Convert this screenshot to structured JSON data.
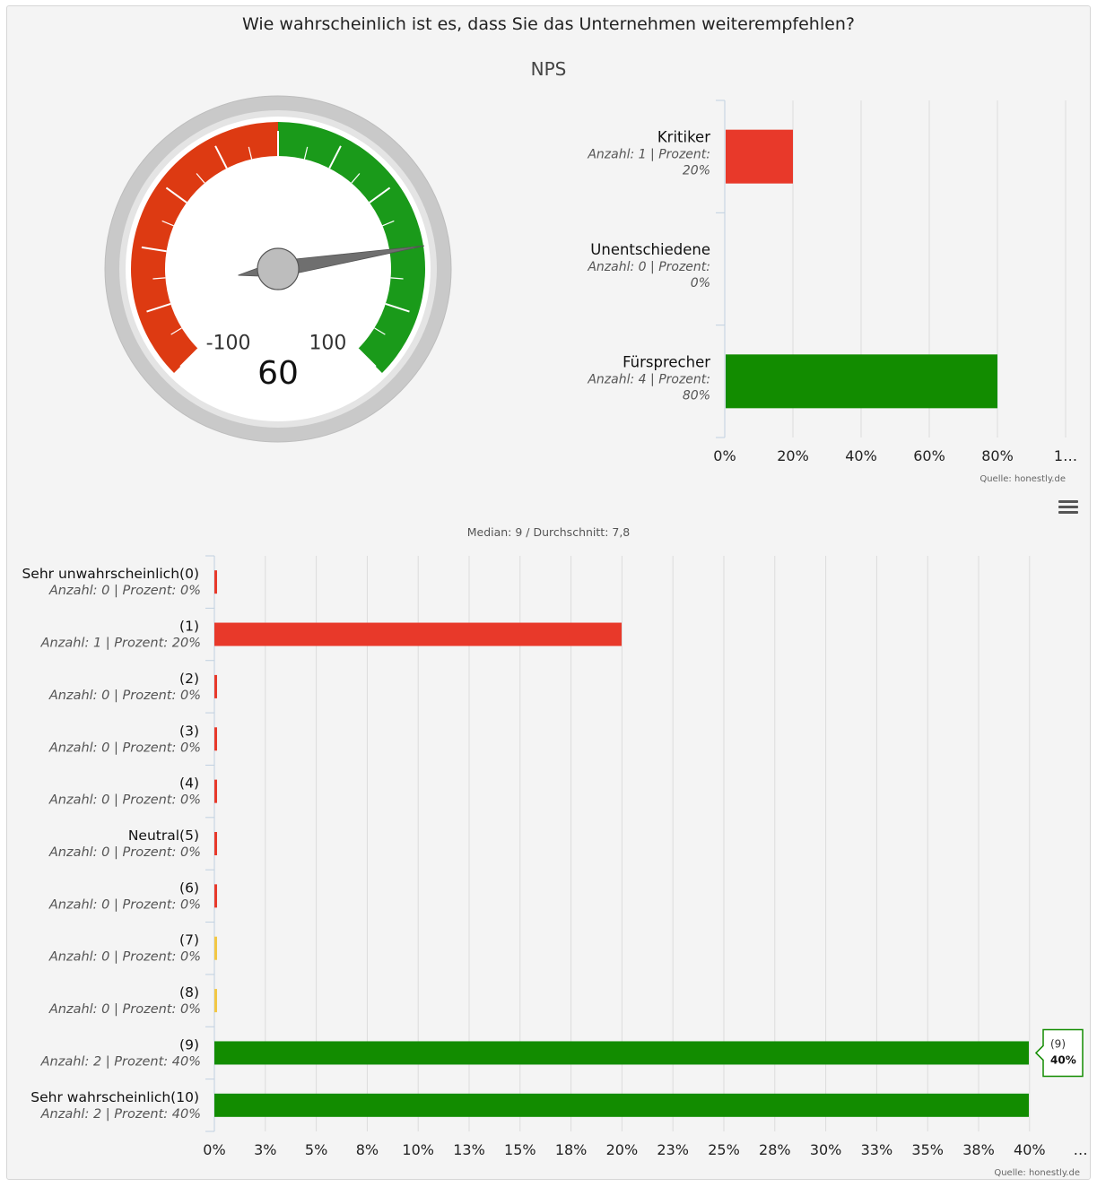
{
  "question": "Wie wahrscheinlich ist es, dass Sie das Unternehmen weiterempfehlen?",
  "gauge": {
    "title": "NPS",
    "value": 60,
    "min": -100,
    "max": 100,
    "min_label": "-100",
    "max_label": "100",
    "value_label": "60",
    "bands": [
      {
        "from": -100,
        "to": 0,
        "color": "#dd3a12"
      },
      {
        "from": 0,
        "to": 100,
        "color": "#1a9a1a"
      }
    ]
  },
  "stats": {
    "text": "Median: 9 / Durchschnitt: 7,8"
  },
  "source": "Quelle: honestly.de",
  "chart_data": [
    {
      "type": "bar",
      "orientation": "horizontal",
      "categories": [
        "Kritiker",
        "Unentschiedene",
        "Fürsprecher"
      ],
      "sublabels_line1": [
        "Anzahl: 1 | Prozent:",
        "Anzahl: 0 | Prozent:",
        "Anzahl: 4 | Prozent:"
      ],
      "sublabels_line2": [
        "20%",
        "0%",
        "80%"
      ],
      "values": [
        20,
        0,
        80
      ],
      "counts": [
        1,
        0,
        4
      ],
      "colors": [
        "#e8392a",
        "#e8392a",
        "#128c00"
      ],
      "xlim": [
        0,
        100
      ],
      "xticks": [
        "0%",
        "20%",
        "40%",
        "60%",
        "80%",
        "1…"
      ],
      "source": "Quelle: honestly.de"
    },
    {
      "type": "bar",
      "orientation": "horizontal",
      "categories": [
        "Sehr unwahrscheinlich(0)",
        "(1)",
        "(2)",
        "(3)",
        "(4)",
        "Neutral(5)",
        "(6)",
        "(7)",
        "(8)",
        "(9)",
        "Sehr wahrscheinlich(10)"
      ],
      "sublabels": [
        "Anzahl: 0 | Prozent: 0%",
        "Anzahl: 1 | Prozent: 20%",
        "Anzahl: 0 | Prozent: 0%",
        "Anzahl: 0 | Prozent: 0%",
        "Anzahl: 0 | Prozent: 0%",
        "Anzahl: 0 | Prozent: 0%",
        "Anzahl: 0 | Prozent: 0%",
        "Anzahl: 0 | Prozent: 0%",
        "Anzahl: 0 | Prozent: 0%",
        "Anzahl: 2 | Prozent: 40%",
        "Anzahl: 2 | Prozent: 40%"
      ],
      "values": [
        0,
        20,
        0,
        0,
        0,
        0,
        0,
        0,
        0,
        40,
        40
      ],
      "counts": [
        0,
        1,
        0,
        0,
        0,
        0,
        0,
        0,
        0,
        2,
        2
      ],
      "colors": [
        "#e8392a",
        "#e8392a",
        "#e8392a",
        "#e8392a",
        "#e8392a",
        "#e8392a",
        "#e8392a",
        "#f2c744",
        "#f2c744",
        "#128c00",
        "#128c00"
      ],
      "xlim": [
        0,
        42
      ],
      "xticks": [
        "0%",
        "3%",
        "5%",
        "8%",
        "10%",
        "13%",
        "15%",
        "18%",
        "20%",
        "23%",
        "25%",
        "28%",
        "30%",
        "33%",
        "35%",
        "38%",
        "40%",
        "…"
      ],
      "tooltip": {
        "category": "(9)",
        "value_label": "40%"
      },
      "source": "Quelle: honestly.de"
    }
  ]
}
